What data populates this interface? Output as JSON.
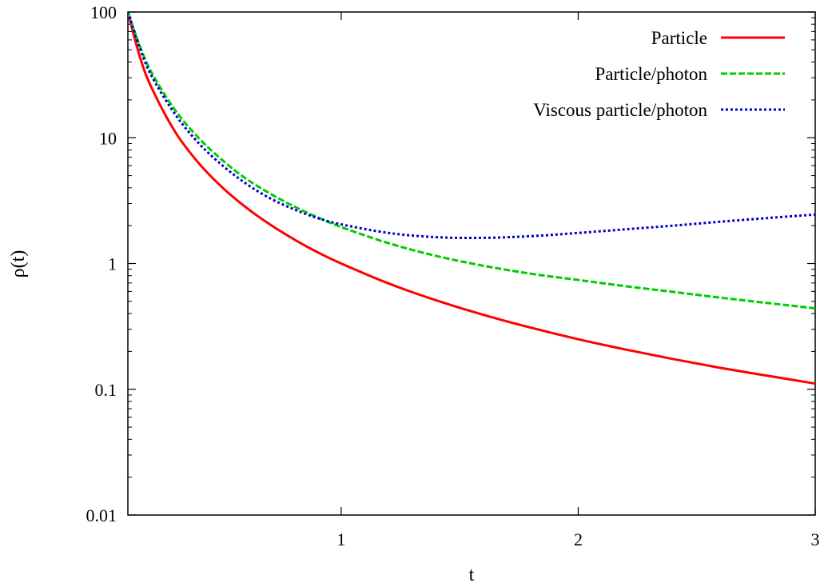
{
  "chart_data": {
    "type": "line",
    "title": "",
    "xlabel": "t",
    "ylabel": "ρ(t)",
    "xlim": [
      0.1,
      3
    ],
    "ylim": [
      0.01,
      100
    ],
    "yscale": "log",
    "grid": false,
    "legend_position": "top-right",
    "x_ticks": [
      {
        "value": 1,
        "label": "1"
      },
      {
        "value": 2,
        "label": "2"
      },
      {
        "value": 3,
        "label": "3"
      }
    ],
    "y_ticks": [
      {
        "value": 0.01,
        "label": "0.01"
      },
      {
        "value": 0.1,
        "label": "0.1"
      },
      {
        "value": 1,
        "label": "1"
      },
      {
        "value": 10,
        "label": "10"
      },
      {
        "value": 100,
        "label": "100"
      }
    ],
    "series": [
      {
        "name": "Particle",
        "color": "#ff0000",
        "style": "solid",
        "points": [
          [
            0.1,
            100
          ],
          [
            0.15,
            44.4
          ],
          [
            0.2,
            25
          ],
          [
            0.3,
            11.1
          ],
          [
            0.4,
            6.25
          ],
          [
            0.5,
            4
          ],
          [
            0.6,
            2.78
          ],
          [
            0.7,
            2.04
          ],
          [
            0.8,
            1.56
          ],
          [
            0.9,
            1.23
          ],
          [
            1.0,
            1.0
          ],
          [
            1.2,
            0.694
          ],
          [
            1.4,
            0.51
          ],
          [
            1.6,
            0.391
          ],
          [
            1.8,
            0.309
          ],
          [
            2.0,
            0.25
          ],
          [
            2.2,
            0.207
          ],
          [
            2.4,
            0.174
          ],
          [
            2.6,
            0.148
          ],
          [
            2.8,
            0.128
          ],
          [
            3.0,
            0.111
          ]
        ]
      },
      {
        "name": "Particle/photon",
        "color": "#00cc00",
        "style": "dashed",
        "points": [
          [
            0.1,
            100
          ],
          [
            0.15,
            54
          ],
          [
            0.2,
            33
          ],
          [
            0.3,
            16.5
          ],
          [
            0.4,
            9.9
          ],
          [
            0.5,
            6.6
          ],
          [
            0.6,
            4.7
          ],
          [
            0.7,
            3.6
          ],
          [
            0.8,
            2.85
          ],
          [
            0.9,
            2.33
          ],
          [
            1.0,
            1.95
          ],
          [
            1.2,
            1.45
          ],
          [
            1.4,
            1.15
          ],
          [
            1.6,
            0.96
          ],
          [
            1.8,
            0.83
          ],
          [
            2.0,
            0.74
          ],
          [
            2.2,
            0.66
          ],
          [
            2.4,
            0.595
          ],
          [
            2.6,
            0.535
          ],
          [
            2.8,
            0.485
          ],
          [
            3.0,
            0.44
          ]
        ]
      },
      {
        "name": "Viscous particle/photon",
        "color": "#0000cc",
        "style": "dotted",
        "points": [
          [
            0.1,
            100
          ],
          [
            0.15,
            52
          ],
          [
            0.2,
            31
          ],
          [
            0.3,
            15.3
          ],
          [
            0.4,
            9.0
          ],
          [
            0.5,
            6.0
          ],
          [
            0.6,
            4.3
          ],
          [
            0.7,
            3.3
          ],
          [
            0.8,
            2.7
          ],
          [
            0.9,
            2.3
          ],
          [
            1.0,
            2.05
          ],
          [
            1.2,
            1.75
          ],
          [
            1.4,
            1.62
          ],
          [
            1.6,
            1.6
          ],
          [
            1.8,
            1.65
          ],
          [
            2.0,
            1.75
          ],
          [
            2.2,
            1.87
          ],
          [
            2.4,
            2.0
          ],
          [
            2.6,
            2.15
          ],
          [
            2.8,
            2.3
          ],
          [
            3.0,
            2.45
          ]
        ]
      }
    ]
  }
}
